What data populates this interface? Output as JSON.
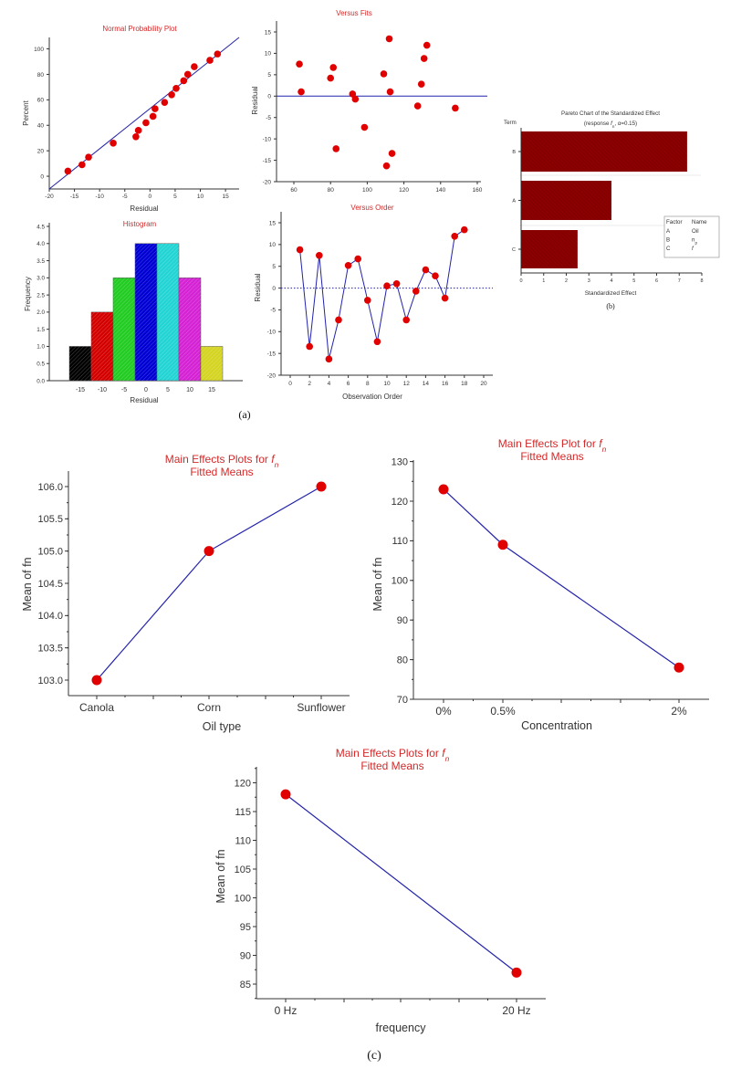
{
  "figure": {
    "label_a": "(a)",
    "label_b": "(b)",
    "label_c": "(c)",
    "colors": {
      "title": "#d42a2a",
      "marker": "#e00000",
      "line": "#2222aa",
      "pareto_bar": "#8b0000"
    }
  },
  "chart_data": [
    {
      "id": "npp",
      "type": "scatter",
      "title": "Normal Probability Plot",
      "xlabel": "Residual",
      "ylabel": "Percent",
      "xlim": [
        -20,
        17.7
      ],
      "ylim": [
        -10,
        109
      ],
      "xticks": [
        -20,
        -15,
        -10,
        -5,
        0,
        5,
        10,
        15
      ],
      "yticks": [
        0,
        20,
        40,
        60,
        80,
        100
      ],
      "points": [
        [
          -16.3,
          4
        ],
        [
          -13.5,
          9
        ],
        [
          -12.2,
          15
        ],
        [
          -7.3,
          26
        ],
        [
          -2.8,
          31
        ],
        [
          -2.3,
          36
        ],
        [
          -0.8,
          42
        ],
        [
          0.6,
          47
        ],
        [
          1.0,
          53
        ],
        [
          2.9,
          58
        ],
        [
          4.3,
          64
        ],
        [
          5.2,
          69
        ],
        [
          6.7,
          75
        ],
        [
          7.5,
          80
        ],
        [
          8.8,
          86
        ],
        [
          11.9,
          91
        ],
        [
          13.4,
          96
        ]
      ],
      "fit_line": [
        [
          -20,
          -10
        ],
        [
          17.7,
          109
        ]
      ]
    },
    {
      "id": "histogram",
      "type": "bar",
      "title": "Histogram",
      "xlabel": "Residual",
      "ylabel": "Frequency",
      "categories": [
        "-15",
        "-10",
        "-5",
        "0",
        "5",
        "10",
        "15"
      ],
      "values": [
        1,
        2,
        3,
        4,
        4,
        3,
        1
      ],
      "colors": [
        "#000000",
        "#d40000",
        "#22cc22",
        "#0000d4",
        "#22d4d4",
        "#d422d4",
        "#d4d422"
      ],
      "ylim": [
        0,
        4.5
      ],
      "yticks": [
        "0.0",
        "0.5",
        "1.0",
        "1.5",
        "2.0",
        "2.5",
        "3.0",
        "3.5",
        "4.0",
        "4.5"
      ]
    },
    {
      "id": "versus-fits",
      "type": "scatter",
      "title": "Versus Fits",
      "ylabel": "Residual",
      "xlim": [
        50.5,
        165
      ],
      "ylim": [
        -20,
        17.5
      ],
      "xticks": [
        60,
        80,
        100,
        120,
        140,
        160
      ],
      "yticks": [
        -20,
        -15,
        -10,
        -5,
        0,
        5,
        10,
        15
      ],
      "reference_line": 0,
      "points": [
        [
          63,
          7.5
        ],
        [
          64,
          1.0
        ],
        [
          80,
          4.2
        ],
        [
          81.5,
          6.7
        ],
        [
          83,
          -12.3
        ],
        [
          92,
          0.5
        ],
        [
          93.5,
          -0.7
        ],
        [
          98.5,
          -7.3
        ],
        [
          109,
          5.2
        ],
        [
          110.5,
          -16.3
        ],
        [
          112,
          13.4
        ],
        [
          112.5,
          1.0
        ],
        [
          113.5,
          -13.4
        ],
        [
          127.5,
          -2.3
        ],
        [
          129.5,
          2.8
        ],
        [
          131,
          8.8
        ],
        [
          132.5,
          11.9
        ],
        [
          148,
          -2.8
        ]
      ]
    },
    {
      "id": "versus-order",
      "type": "line",
      "title": "Versus Order",
      "xlabel": "Observation Order",
      "ylabel": "Residual",
      "xlim": [
        -1,
        21
      ],
      "ylim": [
        -20,
        17.3
      ],
      "xticks": [
        0,
        2,
        4,
        6,
        8,
        10,
        12,
        14,
        16,
        18,
        20
      ],
      "yticks": [
        -20,
        -15,
        -10,
        -5,
        0,
        5,
        10,
        15
      ],
      "reference_line": 0,
      "x": [
        1,
        2,
        3,
        4,
        5,
        6,
        7,
        8,
        9,
        10,
        11,
        12,
        13,
        14,
        15,
        16,
        17,
        18
      ],
      "y": [
        8.8,
        -13.4,
        7.5,
        -16.3,
        -7.3,
        5.2,
        6.7,
        -2.8,
        -12.3,
        0.5,
        1.0,
        -7.3,
        -0.7,
        4.2,
        2.8,
        -2.3,
        11.9,
        13.4
      ]
    },
    {
      "id": "pareto",
      "type": "bar",
      "orientation": "horizontal",
      "title": "Pareto Chart of the Standardized Effect",
      "subtitle_parts": [
        "(response ",
        "f",
        "n",
        ", α=0.15)"
      ],
      "ylabel": "Term",
      "xlabel": "Standardized Effect",
      "categories": [
        "B",
        "A",
        "C"
      ],
      "values": [
        7.35,
        4.0,
        2.5
      ],
      "xlim": [
        0,
        8
      ],
      "xticks": [
        0,
        1,
        2,
        3,
        4,
        5,
        6,
        7,
        8
      ],
      "legend": {
        "headers": [
          "Factor",
          "Name"
        ],
        "rows": [
          [
            "A",
            "Oil",
            ""
          ],
          [
            "B",
            "n",
            "p"
          ],
          [
            "C",
            "f",
            ""
          ]
        ]
      }
    },
    {
      "id": "main-effects-oil",
      "type": "line",
      "title_parts": [
        "Main Effects Plots for ",
        "f",
        "n"
      ],
      "title2": "Fitted Means",
      "xlabel": "Oil type",
      "ylabel": "Mean of fn",
      "categories": [
        "Canola",
        "Corn",
        "Sunflower"
      ],
      "values": [
        103.0,
        105.0,
        106.0
      ],
      "ylim": [
        102.76,
        106.25
      ],
      "yticks": [
        "103.0",
        "103.5",
        "104.0",
        "104.5",
        "105.0",
        "105.5",
        "106.0"
      ]
    },
    {
      "id": "main-effects-concentration",
      "type": "line",
      "title_parts": [
        "Main Effects Plot for ",
        "f",
        "n"
      ],
      "title2": "Fitted Means",
      "xlabel": "Concentration",
      "ylabel": "Mean of fn",
      "categories": [
        "0%",
        "0.5%",
        "2%"
      ],
      "values": [
        123,
        109,
        78
      ],
      "ylim": [
        70,
        130
      ],
      "yticks": [
        "70",
        "80",
        "90",
        "100",
        "110",
        "120",
        "130"
      ]
    },
    {
      "id": "main-effects-frequency",
      "type": "line",
      "title_parts": [
        "Main Effects Plots for ",
        "f",
        "n"
      ],
      "title2": "Fitted Means",
      "xlabel": "frequency",
      "ylabel": "Mean of fn",
      "categories": [
        "0 Hz",
        "20 Hz"
      ],
      "values": [
        118,
        87
      ],
      "ylim": [
        82.5,
        122.5
      ],
      "yticks": [
        "85",
        "90",
        "95",
        "100",
        "105",
        "110",
        "115",
        "120"
      ]
    }
  ]
}
